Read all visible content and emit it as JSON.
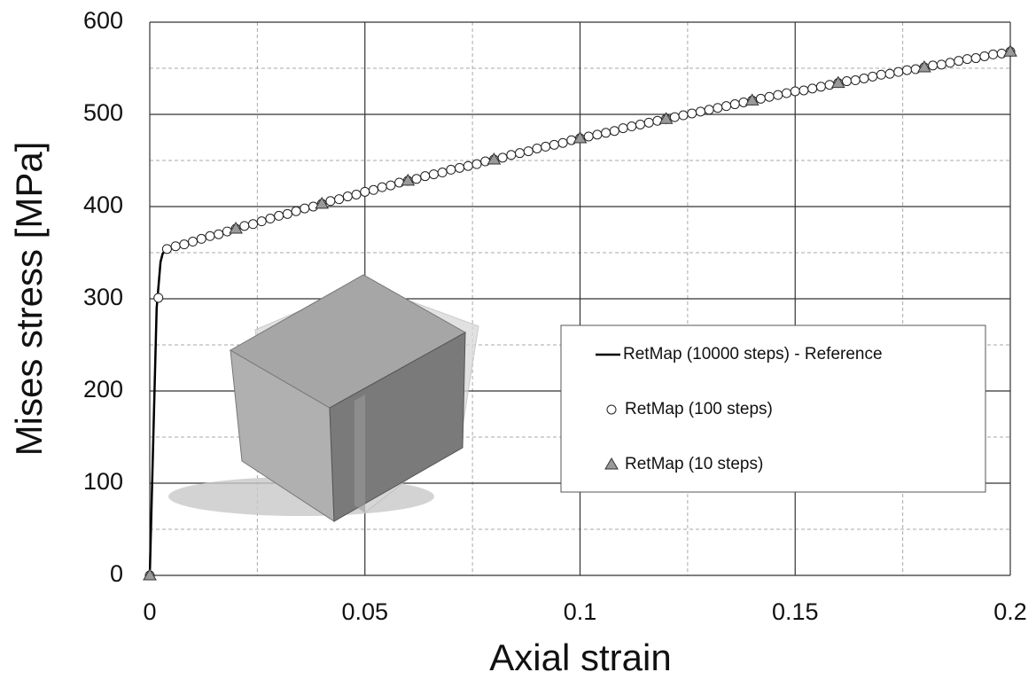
{
  "chart_data": {
    "type": "line",
    "xlabel": "Axial strain",
    "ylabel": "Mises stress [MPa]",
    "xlim": [
      0,
      0.2
    ],
    "ylim": [
      0,
      600
    ],
    "xticks": [
      0,
      0.05,
      0.1,
      0.15,
      0.2
    ],
    "yticks": [
      0,
      100,
      200,
      300,
      400,
      500,
      600
    ],
    "xminorticks": [
      0.025,
      0.075,
      0.125,
      0.175
    ],
    "yminorticks": [
      50,
      150,
      250,
      350,
      450,
      550
    ],
    "grid": true,
    "legend": "right",
    "series": [
      {
        "name": "RetMap (10000 steps) - Reference",
        "color": "#000000",
        "marker": "none",
        "x": [
          0,
          0.0016,
          0.0025,
          0.003,
          0.004,
          0.02,
          0.04,
          0.06,
          0.08,
          0.1,
          0.12,
          0.14,
          0.16,
          0.18,
          0.2
        ],
        "values": [
          0,
          290,
          340,
          349,
          354,
          376,
          403,
          428,
          451,
          474,
          495,
          515,
          534,
          551,
          568
        ]
      },
      {
        "name": "RetMap (100 steps)",
        "color": "#ffffff",
        "marker": "circle",
        "x": [
          0,
          0.002,
          0.004,
          0.006,
          0.008,
          0.01,
          0.012,
          0.014,
          0.016,
          0.018,
          0.02,
          0.022,
          0.024,
          0.026,
          0.028,
          0.03,
          0.032,
          0.034,
          0.036,
          0.038,
          0.04,
          0.042,
          0.044,
          0.046,
          0.048,
          0.05,
          0.052,
          0.054,
          0.056,
          0.058,
          0.06,
          0.062,
          0.064,
          0.066,
          0.068,
          0.07,
          0.072,
          0.074,
          0.076,
          0.078,
          0.08,
          0.082,
          0.084,
          0.086,
          0.088,
          0.09,
          0.092,
          0.094,
          0.096,
          0.098,
          0.1,
          0.102,
          0.104,
          0.106,
          0.108,
          0.11,
          0.112,
          0.114,
          0.116,
          0.118,
          0.12,
          0.122,
          0.124,
          0.126,
          0.128,
          0.13,
          0.132,
          0.134,
          0.136,
          0.138,
          0.14,
          0.142,
          0.144,
          0.146,
          0.148,
          0.15,
          0.152,
          0.154,
          0.156,
          0.158,
          0.16,
          0.162,
          0.164,
          0.166,
          0.168,
          0.17,
          0.172,
          0.174,
          0.176,
          0.178,
          0.18,
          0.182,
          0.184,
          0.186,
          0.188,
          0.19,
          0.192,
          0.194,
          0.196,
          0.198,
          0.2
        ],
        "values": [
          0,
          301,
          354,
          357,
          359,
          362,
          365,
          368,
          370,
          373,
          376,
          379,
          381,
          384,
          387,
          390,
          392,
          395,
          398,
          400,
          403,
          406,
          408,
          411,
          413,
          416,
          418,
          421,
          423,
          426,
          428,
          430,
          433,
          435,
          437,
          440,
          442,
          444,
          446,
          449,
          451,
          453,
          456,
          458,
          460,
          463,
          465,
          467,
          469,
          472,
          474,
          476,
          478,
          480,
          482,
          485,
          487,
          489,
          491,
          493,
          495,
          497,
          499,
          501,
          503,
          505,
          507,
          509,
          511,
          513,
          515,
          517,
          519,
          521,
          523,
          525,
          526,
          528,
          530,
          532,
          534,
          536,
          537,
          539,
          541,
          543,
          544,
          546,
          548,
          549,
          551,
          553,
          554,
          556,
          558,
          560,
          561,
          563,
          565,
          566,
          568
        ]
      },
      {
        "name": "RetMap (10 steps)",
        "color": "#9a9a9a",
        "marker": "triangle",
        "x": [
          0,
          0.02,
          0.04,
          0.06,
          0.08,
          0.1,
          0.12,
          0.14,
          0.16,
          0.18,
          0.2
        ],
        "values": [
          0,
          376,
          403,
          428,
          451,
          474,
          495,
          515,
          534,
          551,
          568
        ]
      }
    ]
  }
}
